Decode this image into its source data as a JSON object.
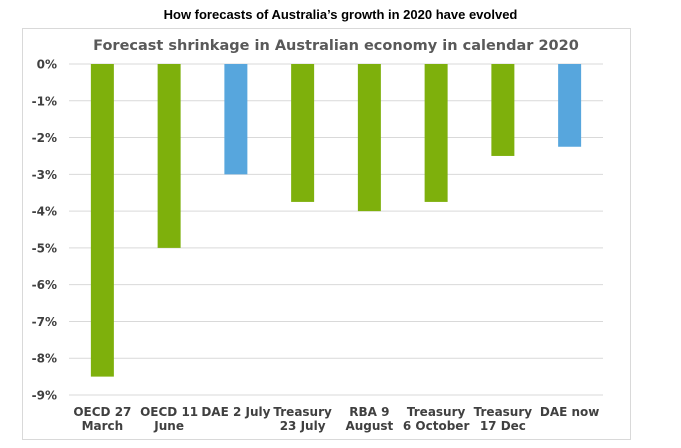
{
  "page": {
    "title": "How forecasts of Australia’s growth in 2020 have evolved"
  },
  "colors": {
    "green": "#7eb00c",
    "blue": "#57a6dd",
    "grid": "#d9d9d9",
    "text": "#404040",
    "title": "#595959"
  },
  "chart_data": {
    "type": "bar",
    "title": "Forecast shrinkage in Australian economy in calendar 2020",
    "xlabel": "",
    "ylabel": "",
    "ylim": [
      -9,
      0
    ],
    "yticks": [
      0,
      -1,
      -2,
      -3,
      -4,
      -5,
      -6,
      -7,
      -8,
      -9
    ],
    "ytick_labels": [
      "0%",
      "-1%",
      "-2%",
      "-3%",
      "-4%",
      "-5%",
      "-6%",
      "-7%",
      "-8%",
      "-9%"
    ],
    "grid": true,
    "legend": "none",
    "categories": [
      [
        "OECD 27",
        "March"
      ],
      [
        "OECD 11",
        "June"
      ],
      [
        "DAE 2 July"
      ],
      [
        "Treasury",
        "23 July"
      ],
      [
        "RBA 9",
        "August"
      ],
      [
        "Treasury",
        "6 October"
      ],
      [
        "Treasury",
        "17 Dec"
      ],
      [
        "DAE now"
      ]
    ],
    "values": [
      -8.5,
      -5.0,
      -3.0,
      -3.75,
      -4.0,
      -3.75,
      -2.5,
      -2.25
    ],
    "bar_colors": [
      "green",
      "green",
      "blue",
      "green",
      "green",
      "green",
      "green",
      "blue"
    ]
  }
}
